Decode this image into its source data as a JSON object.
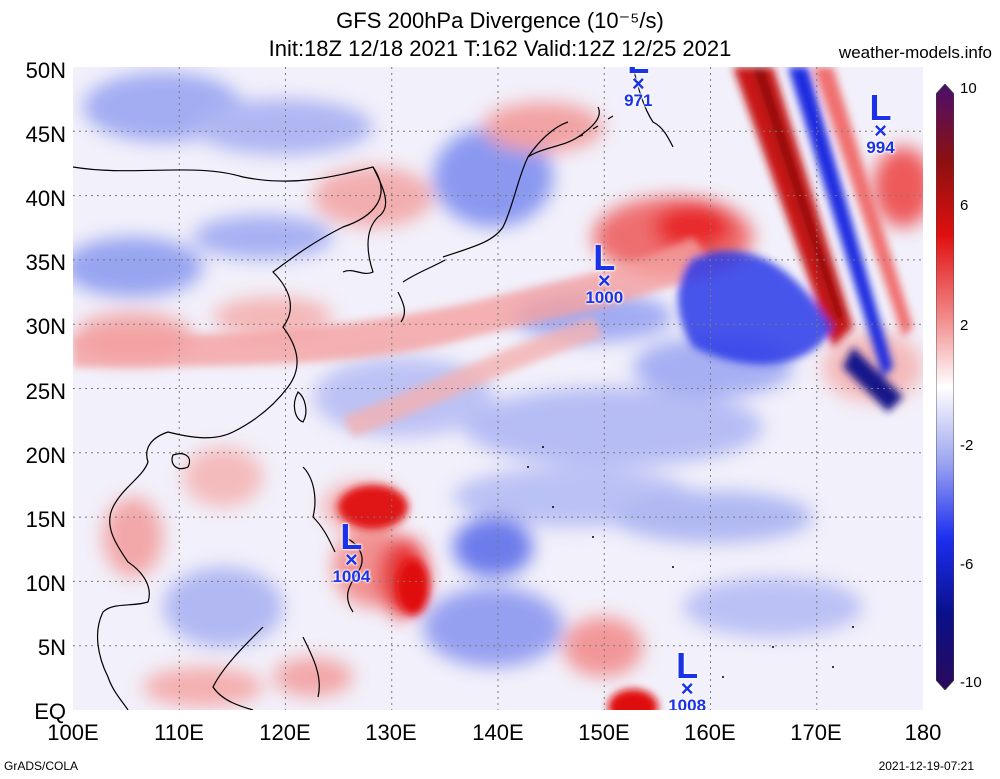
{
  "header": {
    "title_line1": "GFS 200hPa Divergence (10⁻⁵/s)",
    "title_line2": "Init:18Z 12/18 2021 T:162 Valid:12Z 12/25 2021",
    "site": "weather-models.info"
  },
  "axes": {
    "y_labels": [
      "50N",
      "45N",
      "40N",
      "35N",
      "30N",
      "25N",
      "20N",
      "15N",
      "10N",
      "5N",
      "EQ"
    ],
    "x_labels": [
      "100E",
      "110E",
      "120E",
      "130E",
      "140E",
      "150E",
      "160E",
      "170E",
      "180"
    ],
    "lon_range": [
      100,
      180
    ],
    "lat_range": [
      0,
      50
    ]
  },
  "colorbar": {
    "ticks": [
      "10",
      "6",
      "2",
      "-2",
      "-6",
      "-10"
    ],
    "colors": [
      "#4b0f6e",
      "#8a1010",
      "#e01010",
      "#f08080",
      "#ffffff",
      "#9ca4f0",
      "#1c2ef0",
      "#0a108a",
      "#2a0a5a"
    ]
  },
  "lows": [
    {
      "label": "L",
      "marker": "×",
      "pressure": "971",
      "lon": 153.2,
      "lat": 48.8
    },
    {
      "label": "L",
      "marker": "×",
      "pressure": "994",
      "lon": 176.0,
      "lat": 45.2
    },
    {
      "label": "L",
      "marker": "×",
      "pressure": "1000",
      "lon": 150.0,
      "lat": 33.5
    },
    {
      "label": "L",
      "marker": "×",
      "pressure": "1004",
      "lon": 126.2,
      "lat": 11.8
    },
    {
      "label": "L",
      "marker": "×",
      "pressure": "1008",
      "lon": 157.8,
      "lat": 1.8
    }
  ],
  "footer": {
    "left": "GrADS/COLA",
    "right": "2021-12-19-07:21"
  }
}
